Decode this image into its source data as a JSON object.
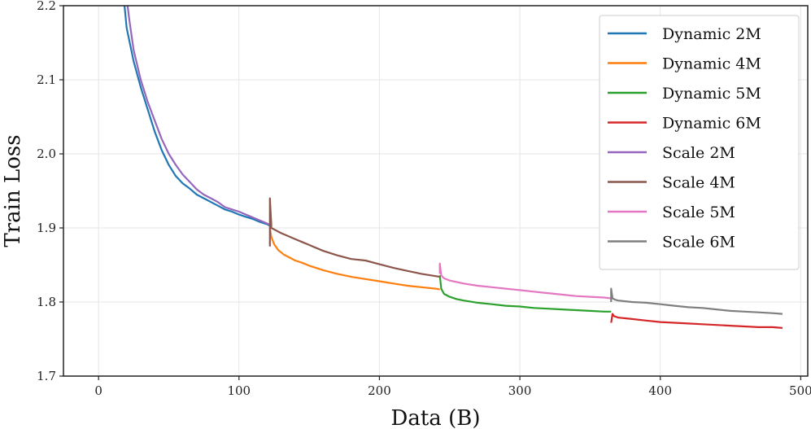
{
  "chart_data": {
    "type": "line",
    "title": "",
    "xlabel": "Data (B)",
    "ylabel": "Train Loss",
    "xlim": [
      -25,
      505
    ],
    "ylim": [
      1.7,
      2.2
    ],
    "xticks": [
      0,
      100,
      200,
      300,
      400,
      500
    ],
    "yticks": [
      1.7,
      1.8,
      1.9,
      2.0,
      2.1,
      2.2
    ],
    "xtick_labels": [
      "0",
      "100",
      "200",
      "300",
      "400",
      "500"
    ],
    "ytick_labels": [
      "1.7",
      "1.8",
      "1.9",
      "2.0",
      "2.1",
      "2.2"
    ],
    "grid": true,
    "legend_position": "top-right",
    "series": [
      {
        "name": "Dynamic 2M",
        "color": "#1f77b4",
        "x": [
          18,
          20,
          25,
          30,
          35,
          40,
          45,
          50,
          55,
          60,
          65,
          70,
          75,
          80,
          85,
          90,
          95,
          100,
          105,
          110,
          115,
          120,
          122
        ],
        "y": [
          2.21,
          2.17,
          2.125,
          2.09,
          2.06,
          2.03,
          2.005,
          1.985,
          1.97,
          1.96,
          1.953,
          1.945,
          1.94,
          1.935,
          1.93,
          1.925,
          1.922,
          1.918,
          1.915,
          1.912,
          1.908,
          1.905,
          1.903
        ]
      },
      {
        "name": "Dynamic 4M",
        "color": "#ff7f0e",
        "x": [
          122,
          123,
          125,
          128,
          132,
          136,
          140,
          145,
          150,
          160,
          170,
          180,
          190,
          200,
          210,
          220,
          230,
          240,
          243
        ],
        "y": [
          1.9,
          1.888,
          1.878,
          1.87,
          1.864,
          1.86,
          1.856,
          1.853,
          1.849,
          1.843,
          1.838,
          1.834,
          1.831,
          1.828,
          1.825,
          1.822,
          1.82,
          1.818,
          1.817
        ]
      },
      {
        "name": "Dynamic 5M",
        "color": "#2ca02c",
        "x": [
          243,
          244,
          246,
          250,
          255,
          260,
          270,
          280,
          290,
          300,
          310,
          320,
          330,
          340,
          350,
          360,
          365
        ],
        "y": [
          1.836,
          1.818,
          1.811,
          1.807,
          1.804,
          1.802,
          1.799,
          1.797,
          1.795,
          1.794,
          1.792,
          1.791,
          1.79,
          1.789,
          1.788,
          1.787,
          1.787
        ]
      },
      {
        "name": "Dynamic 6M",
        "color": "#d62728",
        "x": [
          365,
          366,
          367,
          370,
          375,
          380,
          390,
          400,
          410,
          420,
          430,
          440,
          450,
          460,
          470,
          480,
          487
        ],
        "y": [
          1.772,
          1.784,
          1.781,
          1.779,
          1.778,
          1.777,
          1.775,
          1.773,
          1.772,
          1.771,
          1.77,
          1.769,
          1.768,
          1.767,
          1.766,
          1.766,
          1.765
        ]
      },
      {
        "name": "Scale 2M",
        "color": "#9467bd",
        "x": [
          20,
          22,
          25,
          30,
          35,
          40,
          45,
          50,
          55,
          60,
          65,
          70,
          75,
          80,
          85,
          90,
          95,
          100,
          105,
          110,
          115,
          120,
          122
        ],
        "y": [
          2.21,
          2.18,
          2.14,
          2.1,
          2.07,
          2.045,
          2.02,
          2.0,
          1.985,
          1.972,
          1.962,
          1.952,
          1.945,
          1.94,
          1.935,
          1.928,
          1.925,
          1.922,
          1.918,
          1.914,
          1.91,
          1.906,
          1.904
        ]
      },
      {
        "name": "Scale 4M",
        "color": "#8c564b",
        "x": [
          122,
          122,
          123,
          123,
          125,
          130,
          135,
          140,
          145,
          150,
          160,
          170,
          180,
          190,
          200,
          210,
          220,
          230,
          240,
          243
        ],
        "y": [
          1.875,
          1.94,
          1.905,
          1.9,
          1.898,
          1.893,
          1.889,
          1.885,
          1.881,
          1.877,
          1.869,
          1.863,
          1.858,
          1.856,
          1.851,
          1.846,
          1.842,
          1.838,
          1.835,
          1.834
        ]
      },
      {
        "name": "Scale 5M",
        "color": "#e377c2",
        "x": [
          243,
          243,
          244,
          246,
          250,
          255,
          260,
          270,
          280,
          290,
          300,
          310,
          320,
          330,
          340,
          350,
          360,
          365
        ],
        "y": [
          1.838,
          1.852,
          1.836,
          1.832,
          1.829,
          1.827,
          1.825,
          1.822,
          1.82,
          1.818,
          1.816,
          1.814,
          1.812,
          1.81,
          1.808,
          1.807,
          1.806,
          1.805
        ]
      },
      {
        "name": "Scale 6M",
        "color": "#7f7f7f",
        "x": [
          365,
          365,
          366,
          368,
          370,
          375,
          380,
          390,
          400,
          410,
          420,
          430,
          440,
          450,
          460,
          470,
          480,
          487
        ],
        "y": [
          1.8,
          1.818,
          1.805,
          1.803,
          1.802,
          1.801,
          1.8,
          1.799,
          1.797,
          1.795,
          1.793,
          1.792,
          1.79,
          1.788,
          1.787,
          1.786,
          1.785,
          1.784
        ]
      }
    ]
  }
}
